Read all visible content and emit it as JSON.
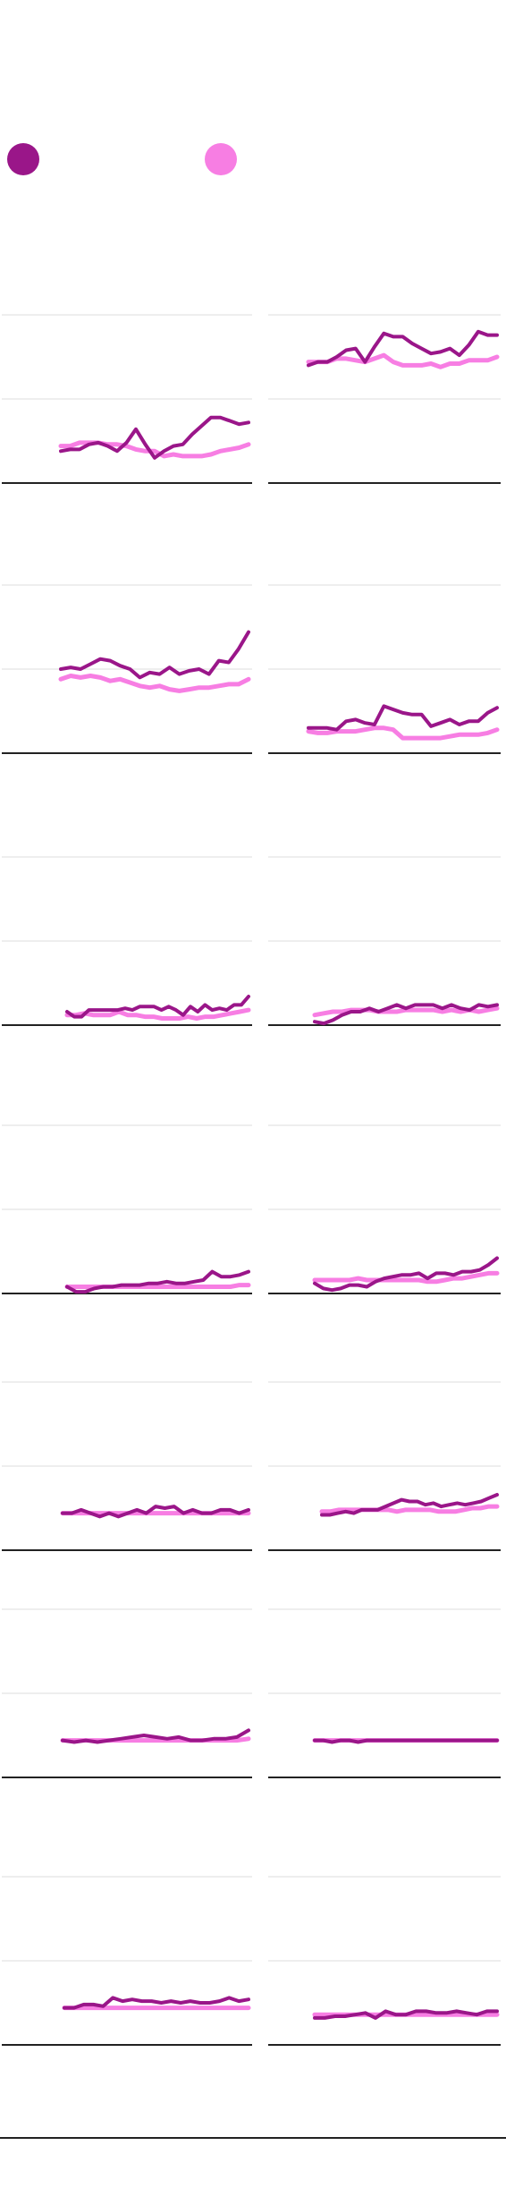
{
  "legend": {
    "items": [
      {
        "label": "",
        "color": "#9a1689"
      },
      {
        "label": "",
        "color": "#f77ee3"
      }
    ]
  },
  "colors": {
    "dark": "#9a1689",
    "light": "#f77ee3",
    "grid": "#dddddd",
    "axis": "#222222"
  },
  "chart_data": [
    {
      "type": "line",
      "ylim": [
        0,
        100
      ],
      "grid": true,
      "series": [
        {
          "values": [
            19,
            20,
            20,
            23,
            24,
            22,
            19,
            24,
            32,
            23,
            15,
            19,
            22,
            23,
            29,
            34,
            39,
            39,
            37,
            35,
            36
          ]
        },
        {
          "values": [
            22,
            22,
            24,
            24,
            24,
            23,
            23,
            22,
            20,
            19,
            19,
            16,
            17,
            16,
            16,
            16,
            17,
            19,
            20,
            21,
            23
          ]
        }
      ]
    },
    {
      "type": "line",
      "ylim": [
        0,
        100
      ],
      "grid": true,
      "series": [
        {
          "values": [
            70,
            72,
            72,
            75,
            79,
            80,
            72,
            81,
            89,
            87,
            87,
            83,
            80,
            77,
            78,
            80,
            76,
            82,
            90,
            88,
            88
          ]
        },
        {
          "values": [
            72,
            72,
            72,
            74,
            74,
            73,
            72,
            74,
            76,
            72,
            70,
            70,
            70,
            71,
            69,
            71,
            71,
            73,
            73,
            73,
            75
          ]
        }
      ]
    },
    {
      "type": "line",
      "ylim": [
        0,
        100
      ],
      "grid": true,
      "series": [
        {
          "values": [
            50,
            51,
            50,
            53,
            56,
            55,
            52,
            50,
            45,
            48,
            47,
            51,
            47,
            49,
            50,
            47,
            55,
            54,
            62,
            72
          ]
        },
        {
          "values": [
            44,
            46,
            45,
            46,
            45,
            43,
            44,
            42,
            40,
            39,
            40,
            38,
            37,
            38,
            39,
            39,
            40,
            41,
            41,
            44
          ]
        }
      ]
    },
    {
      "type": "line",
      "ylim": [
        0,
        100
      ],
      "grid": true,
      "series": [
        {
          "values": [
            15,
            15,
            15,
            14,
            19,
            20,
            18,
            17,
            28,
            26,
            24,
            23,
            23,
            16,
            18,
            20,
            17,
            19,
            19,
            24,
            27
          ]
        },
        {
          "values": [
            13,
            12,
            12,
            13,
            13,
            13,
            14,
            15,
            15,
            14,
            9,
            9,
            9,
            9,
            9,
            10,
            11,
            11,
            11,
            12,
            14
          ]
        }
      ]
    },
    {
      "type": "line",
      "ylim": [
        0,
        100
      ],
      "grid": true,
      "series": [
        {
          "values": [
            8,
            5,
            5,
            9,
            9,
            9,
            9,
            9,
            10,
            9,
            11,
            11,
            11,
            9,
            11,
            9,
            6,
            11,
            8,
            12,
            9,
            10,
            9,
            12,
            12,
            17
          ]
        },
        {
          "values": [
            6,
            6,
            7,
            6,
            6,
            6,
            8,
            6,
            6,
            5,
            5,
            4,
            4,
            4,
            5,
            4,
            5,
            5,
            6,
            7,
            8,
            9
          ]
        }
      ]
    },
    {
      "type": "line",
      "ylim": [
        0,
        100
      ],
      "grid": true,
      "series": [
        {
          "values": [
            2,
            1,
            3,
            6,
            8,
            8,
            10,
            8,
            10,
            12,
            10,
            12,
            12,
            12,
            10,
            12,
            10,
            9,
            12,
            11,
            12
          ]
        },
        {
          "values": [
            6,
            7,
            8,
            8,
            9,
            9,
            9,
            8,
            8,
            8,
            9,
            9,
            9,
            9,
            8,
            9,
            8,
            9,
            8,
            9,
            10
          ]
        }
      ]
    },
    {
      "type": "line",
      "ylim": [
        0,
        100
      ],
      "grid": true,
      "series": [
        {
          "values": [
            4,
            1,
            1,
            3,
            4,
            4,
            5,
            5,
            5,
            6,
            6,
            7,
            6,
            6,
            7,
            8,
            13,
            10,
            10,
            11,
            13
          ]
        },
        {
          "values": [
            4,
            4,
            4,
            4,
            4,
            4,
            4,
            4,
            4,
            4,
            4,
            4,
            4,
            4,
            4,
            4,
            4,
            4,
            4,
            5,
            5
          ]
        }
      ]
    },
    {
      "type": "line",
      "ylim": [
        0,
        100
      ],
      "grid": true,
      "series": [
        {
          "values": [
            6,
            3,
            2,
            3,
            5,
            5,
            4,
            7,
            9,
            10,
            11,
            11,
            12,
            9,
            12,
            12,
            11,
            13,
            13,
            14,
            17,
            21
          ]
        },
        {
          "values": [
            8,
            8,
            8,
            8,
            8,
            9,
            8,
            8,
            8,
            8,
            8,
            8,
            8,
            7,
            7,
            8,
            9,
            9,
            10,
            11,
            12,
            12
          ]
        }
      ]
    },
    {
      "type": "line",
      "ylim": [
        0,
        100
      ],
      "grid": true,
      "series": [
        {
          "values": [
            22,
            22,
            24,
            22,
            20,
            22,
            20,
            22,
            24,
            22,
            26,
            25,
            26,
            22,
            24,
            22,
            22,
            24,
            24,
            22,
            24
          ]
        },
        {
          "values": [
            22,
            22,
            22,
            22,
            22,
            22,
            22,
            22,
            22,
            22,
            22,
            22,
            22,
            22,
            22,
            22,
            22,
            22,
            22,
            22,
            22
          ]
        }
      ]
    },
    {
      "type": "line",
      "ylim": [
        0,
        100
      ],
      "grid": true,
      "series": [
        {
          "values": [
            21,
            21,
            22,
            23,
            22,
            24,
            24,
            24,
            26,
            28,
            30,
            29,
            29,
            27,
            28,
            26,
            27,
            28,
            27,
            28,
            29,
            31,
            33
          ]
        },
        {
          "values": [
            23,
            23,
            24,
            24,
            24,
            24,
            24,
            24,
            24,
            23,
            24,
            24,
            24,
            24,
            23,
            23,
            23,
            24,
            25,
            25,
            26,
            26
          ]
        }
      ]
    },
    {
      "type": "line",
      "ylim": [
        0,
        100
      ],
      "grid": true,
      "series": [
        {
          "values": [
            22,
            21,
            22,
            21,
            22,
            23,
            24,
            25,
            24,
            23,
            24,
            22,
            22,
            23,
            23,
            24,
            28
          ]
        },
        {
          "values": [
            22,
            22,
            22,
            22,
            22,
            22,
            22,
            22,
            22,
            22,
            22,
            22,
            22,
            22,
            22,
            22,
            23
          ]
        }
      ]
    },
    {
      "type": "line",
      "ylim": [
        0,
        100
      ],
      "grid": true,
      "series": [
        {
          "values": [
            22,
            22,
            21,
            22,
            22,
            21,
            22,
            22,
            22,
            22,
            22,
            22,
            22,
            22,
            22,
            22,
            22,
            22,
            22,
            22,
            22,
            22
          ]
        },
        {
          "values": [
            22,
            22,
            22,
            22,
            22,
            22,
            22,
            22,
            22,
            22,
            22,
            22,
            22,
            22,
            22,
            22,
            22,
            22,
            22,
            22,
            22,
            22
          ]
        }
      ]
    },
    {
      "type": "line",
      "ylim": [
        0,
        100
      ],
      "grid": true,
      "series": [
        {
          "values": [
            22,
            22,
            24,
            24,
            23,
            28,
            26,
            27,
            26,
            26,
            25,
            26,
            25,
            26,
            25,
            25,
            26,
            28,
            26,
            27
          ]
        },
        {
          "values": [
            22,
            22,
            22,
            22,
            22,
            22,
            22,
            22,
            22,
            22,
            22,
            22,
            22,
            22,
            22,
            22,
            22,
            22,
            22,
            22
          ]
        }
      ]
    },
    {
      "type": "line",
      "ylim": [
        0,
        100
      ],
      "grid": true,
      "series": [
        {
          "values": [
            16,
            16,
            17,
            17,
            18,
            19,
            16,
            20,
            18,
            18,
            20,
            20,
            19,
            19,
            20,
            19,
            18,
            20,
            20
          ]
        },
        {
          "values": [
            18,
            18,
            18,
            18,
            18,
            18,
            18,
            18,
            18,
            18,
            18,
            18,
            18,
            18,
            18,
            18,
            18,
            18,
            18
          ]
        }
      ]
    }
  ]
}
